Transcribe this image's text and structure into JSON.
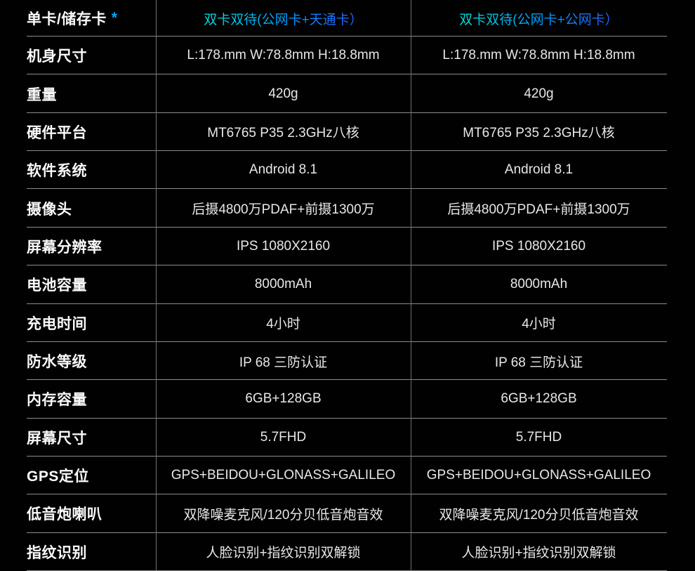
{
  "colors": {
    "background": "#010101",
    "label_text": "#fafafa",
    "value_text": "#e8e8e8",
    "asterisk": "#00aaff",
    "gradient_start": "#00e0dc",
    "gradient_mid": "#0096ff",
    "gradient_end": "#2b5bff",
    "horizontal_line": "#8c8c8c",
    "vertical_line": "#707070"
  },
  "table": {
    "columns": [
      "spec-label",
      "variant-1",
      "variant-2"
    ],
    "rows": [
      {
        "label": "单卡/储存卡",
        "asterisk": "*",
        "col1": "双卡双待(公网卡+天通卡）",
        "col2": "双卡双待(公网卡+公网卡）"
      },
      {
        "label": "机身尺寸",
        "col1": "L:178.mm W:78.8mm H:18.8mm",
        "col2": "L:178.mm W:78.8mm H:18.8mm"
      },
      {
        "label": "重量",
        "col1": "420g",
        "col2": "420g"
      },
      {
        "label": "硬件平台",
        "col1": "MT6765 P35 2.3GHz八核",
        "col2": "MT6765 P35 2.3GHz八核"
      },
      {
        "label": "软件系统",
        "col1": "Android 8.1",
        "col2": "Android 8.1"
      },
      {
        "label": "摄像头",
        "col1": "后摄4800万PDAF+前摄1300万",
        "col2": "后摄4800万PDAF+前摄1300万"
      },
      {
        "label": "屏幕分辨率",
        "col1": "IPS 1080X2160",
        "col2": "IPS 1080X2160"
      },
      {
        "label": "电池容量",
        "col1": "8000mAh",
        "col2": "8000mAh"
      },
      {
        "label": "充电时间",
        "col1": "4小时",
        "col2": "4小时"
      },
      {
        "label": "防水等级",
        "col1": "IP 68 三防认证",
        "col2": "IP 68 三防认证"
      },
      {
        "label": "内存容量",
        "col1": "6GB+128GB",
        "col2": "6GB+128GB"
      },
      {
        "label": "屏幕尺寸",
        "col1": "5.7FHD",
        "col2": "5.7FHD"
      },
      {
        "label": "GPS定位",
        "col1": "GPS+BEIDOU+GLONASS+GALILEO",
        "col2": "GPS+BEIDOU+GLONASS+GALILEO"
      },
      {
        "label": "低音炮喇叭",
        "col1": "双降噪麦克风/120分贝低音炮音效",
        "col2": "双降噪麦克风/120分贝低音炮音效"
      },
      {
        "label": "指纹识别",
        "col1": "人脸识别+指纹识别双解锁",
        "col2": "人脸识别+指纹识别双解锁"
      }
    ]
  }
}
